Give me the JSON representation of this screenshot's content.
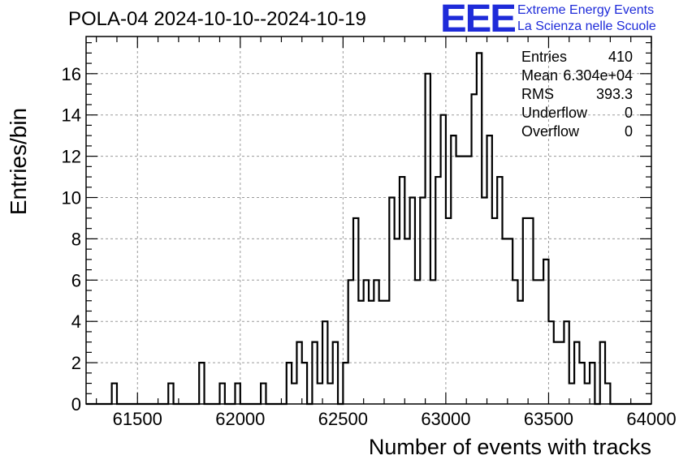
{
  "title": "POLA-04 2024-10-10--2024-10-19",
  "logo": {
    "mark": "EEE",
    "line1": "Extreme Energy Events",
    "line2": "La Scienza nelle Scuole",
    "color": "#1e2bd9"
  },
  "stats": [
    {
      "label": "Entries",
      "value": "410"
    },
    {
      "label": "Mean",
      "value": "6.304e+04"
    },
    {
      "label": "RMS",
      "value": "393.3"
    },
    {
      "label": "Underflow",
      "value": "0"
    },
    {
      "label": "Overflow",
      "value": "0"
    }
  ],
  "chart_data": {
    "type": "histogram",
    "title": "POLA-04 2024-10-10--2024-10-19",
    "xlabel": "Number of events with tracks",
    "ylabel": "Entries/bin",
    "xlim": [
      61250,
      64000
    ],
    "ylim": [
      0,
      17.8
    ],
    "bin_start": 61250,
    "bin_width": 25,
    "xticks": [
      61500,
      62000,
      62500,
      63000,
      63500,
      64000
    ],
    "yticks": [
      0,
      2,
      4,
      6,
      8,
      10,
      12,
      14,
      16
    ],
    "grid": true,
    "line_color": "#000000",
    "values": [
      0,
      0,
      0,
      0,
      0,
      1,
      0,
      0,
      0,
      0,
      0,
      0,
      0,
      0,
      0,
      0,
      1,
      0,
      0,
      0,
      0,
      0,
      2,
      0,
      0,
      0,
      1,
      0,
      0,
      1,
      0,
      0,
      0,
      0,
      1,
      0,
      0,
      0,
      0,
      2,
      1,
      3,
      2,
      0,
      3,
      1,
      4,
      1,
      3,
      0,
      2,
      6,
      9,
      5,
      6,
      5,
      6,
      5,
      5,
      10,
      8,
      11,
      8,
      10,
      6,
      10,
      16,
      6,
      11,
      14,
      9,
      13,
      12,
      12,
      12,
      15,
      17,
      10,
      13,
      9,
      11,
      8,
      8,
      6,
      5,
      9,
      9,
      6,
      6,
      7,
      4,
      3,
      3,
      4,
      1,
      3,
      2,
      1,
      2,
      0,
      3,
      1,
      0,
      0,
      0,
      0,
      0,
      0,
      0,
      0
    ]
  }
}
